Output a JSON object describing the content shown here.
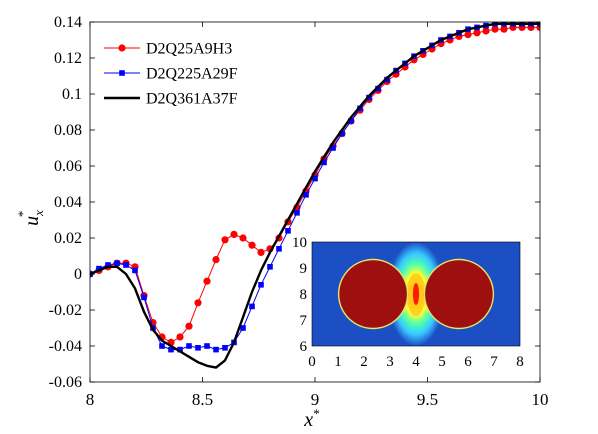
{
  "chart_data": [
    {
      "type": "line",
      "xlabel": "x",
      "xlabel_sup": "*",
      "ylabel": "u",
      "ylabel_sub": "x",
      "ylabel_sup": "*",
      "xlim": [
        8,
        10
      ],
      "ylim": [
        -0.06,
        0.14
      ],
      "xticks": [
        8,
        8.5,
        9,
        9.5,
        10
      ],
      "xtick_labels": [
        "8",
        "8.5",
        "9",
        "9.5",
        "10"
      ],
      "yticks": [
        -0.06,
        -0.04,
        -0.02,
        0,
        0.02,
        0.04,
        0.06,
        0.08,
        0.1,
        0.12,
        0.14
      ],
      "ytick_labels": [
        "-0.06",
        "-0.04",
        "-0.02",
        "0",
        "0.02",
        "0.04",
        "0.06",
        "0.08",
        "0.1",
        "0.12",
        "0.14"
      ],
      "grid": false,
      "legend_position": "top-left",
      "series": [
        {
          "name": "D2Q25A9H3",
          "color": "#ff0000",
          "marker": "circle",
          "x": [
            8.0,
            8.04,
            8.08,
            8.12,
            8.16,
            8.2,
            8.24,
            8.28,
            8.32,
            8.36,
            8.4,
            8.44,
            8.48,
            8.52,
            8.56,
            8.6,
            8.64,
            8.68,
            8.72,
            8.76,
            8.8,
            8.84,
            8.88,
            8.92,
            8.96,
            9.0,
            9.04,
            9.08,
            9.12,
            9.16,
            9.2,
            9.24,
            9.28,
            9.32,
            9.36,
            9.4,
            9.44,
            9.48,
            9.52,
            9.56,
            9.6,
            9.64,
            9.68,
            9.72,
            9.76,
            9.8,
            9.84,
            9.88,
            9.92,
            9.96,
            10.0
          ],
          "y": [
            0.0,
            0.002,
            0.004,
            0.006,
            0.006,
            0.004,
            -0.012,
            -0.027,
            -0.035,
            -0.038,
            -0.035,
            -0.029,
            -0.016,
            -0.004,
            0.008,
            0.019,
            0.022,
            0.02,
            0.016,
            0.012,
            0.014,
            0.02,
            0.029,
            0.037,
            0.046,
            0.055,
            0.064,
            0.071,
            0.078,
            0.085,
            0.091,
            0.097,
            0.102,
            0.107,
            0.111,
            0.115,
            0.119,
            0.122,
            0.125,
            0.128,
            0.13,
            0.132,
            0.133,
            0.134,
            0.135,
            0.136,
            0.136,
            0.137,
            0.137,
            0.137,
            0.137
          ]
        },
        {
          "name": "D2Q225A29F",
          "color": "#0000ff",
          "marker": "square",
          "x": [
            8.0,
            8.04,
            8.08,
            8.12,
            8.16,
            8.2,
            8.24,
            8.28,
            8.32,
            8.36,
            8.4,
            8.44,
            8.48,
            8.52,
            8.56,
            8.6,
            8.64,
            8.68,
            8.72,
            8.76,
            8.8,
            8.84,
            8.88,
            8.92,
            8.96,
            9.0,
            9.04,
            9.08,
            9.12,
            9.16,
            9.2,
            9.24,
            9.28,
            9.32,
            9.36,
            9.4,
            9.44,
            9.48,
            9.52,
            9.56,
            9.6,
            9.64,
            9.68,
            9.72,
            9.76,
            9.8,
            9.84,
            9.88,
            9.92,
            9.96,
            10.0
          ],
          "y": [
            0.0,
            0.003,
            0.005,
            0.006,
            0.005,
            0.002,
            -0.013,
            -0.03,
            -0.04,
            -0.042,
            -0.042,
            -0.04,
            -0.041,
            -0.04,
            -0.042,
            -0.041,
            -0.038,
            -0.03,
            -0.018,
            -0.006,
            0.004,
            0.014,
            0.024,
            0.034,
            0.044,
            0.053,
            0.062,
            0.07,
            0.078,
            0.085,
            0.092,
            0.098,
            0.103,
            0.108,
            0.113,
            0.117,
            0.121,
            0.124,
            0.127,
            0.13,
            0.132,
            0.134,
            0.136,
            0.137,
            0.138,
            0.139,
            0.139,
            0.139,
            0.139,
            0.139,
            0.139
          ]
        },
        {
          "name": "D2Q361A37F",
          "color": "#000000",
          "marker": "none",
          "x": [
            8.0,
            8.04,
            8.08,
            8.12,
            8.16,
            8.2,
            8.24,
            8.28,
            8.32,
            8.36,
            8.4,
            8.44,
            8.48,
            8.52,
            8.56,
            8.6,
            8.64,
            8.68,
            8.72,
            8.76,
            8.8,
            8.84,
            8.88,
            8.92,
            8.96,
            9.0,
            9.04,
            9.08,
            9.12,
            9.16,
            9.2,
            9.24,
            9.28,
            9.32,
            9.36,
            9.4,
            9.44,
            9.48,
            9.52,
            9.56,
            9.6,
            9.64,
            9.68,
            9.72,
            9.76,
            9.8,
            9.84,
            9.88,
            9.92,
            9.96,
            10.0
          ],
          "y": [
            0.0,
            0.002,
            0.004,
            0.004,
            0.0,
            -0.008,
            -0.021,
            -0.031,
            -0.037,
            -0.04,
            -0.043,
            -0.046,
            -0.049,
            -0.051,
            -0.052,
            -0.048,
            -0.038,
            -0.024,
            -0.01,
            0.002,
            0.012,
            0.021,
            0.03,
            0.039,
            0.048,
            0.057,
            0.065,
            0.073,
            0.08,
            0.087,
            0.093,
            0.099,
            0.104,
            0.109,
            0.113,
            0.117,
            0.121,
            0.124,
            0.127,
            0.13,
            0.132,
            0.134,
            0.136,
            0.137,
            0.138,
            0.139,
            0.139,
            0.139,
            0.139,
            0.139,
            0.139
          ]
        }
      ]
    },
    {
      "type": "heatmap",
      "xlim": [
        0,
        8
      ],
      "ylim": [
        6,
        10
      ],
      "xticks": [
        0,
        1,
        2,
        3,
        4,
        5,
        6,
        7,
        8
      ],
      "xtick_labels": [
        "0",
        "1",
        "2",
        "3",
        "4",
        "5",
        "6",
        "7",
        "8"
      ],
      "yticks": [
        6,
        7,
        8,
        9,
        10
      ],
      "ytick_labels": [
        "6",
        "7",
        "8",
        "9",
        "10"
      ],
      "background_color": "#1c4fc4",
      "circles": [
        {
          "cx": 2.35,
          "cy": 8,
          "r": 1.3,
          "color": "#9e0f0f"
        },
        {
          "cx": 5.65,
          "cy": 8,
          "r": 1.3,
          "color": "#9e0f0f"
        }
      ],
      "hotspot": {
        "cx": 4,
        "cy": 8
      }
    }
  ]
}
